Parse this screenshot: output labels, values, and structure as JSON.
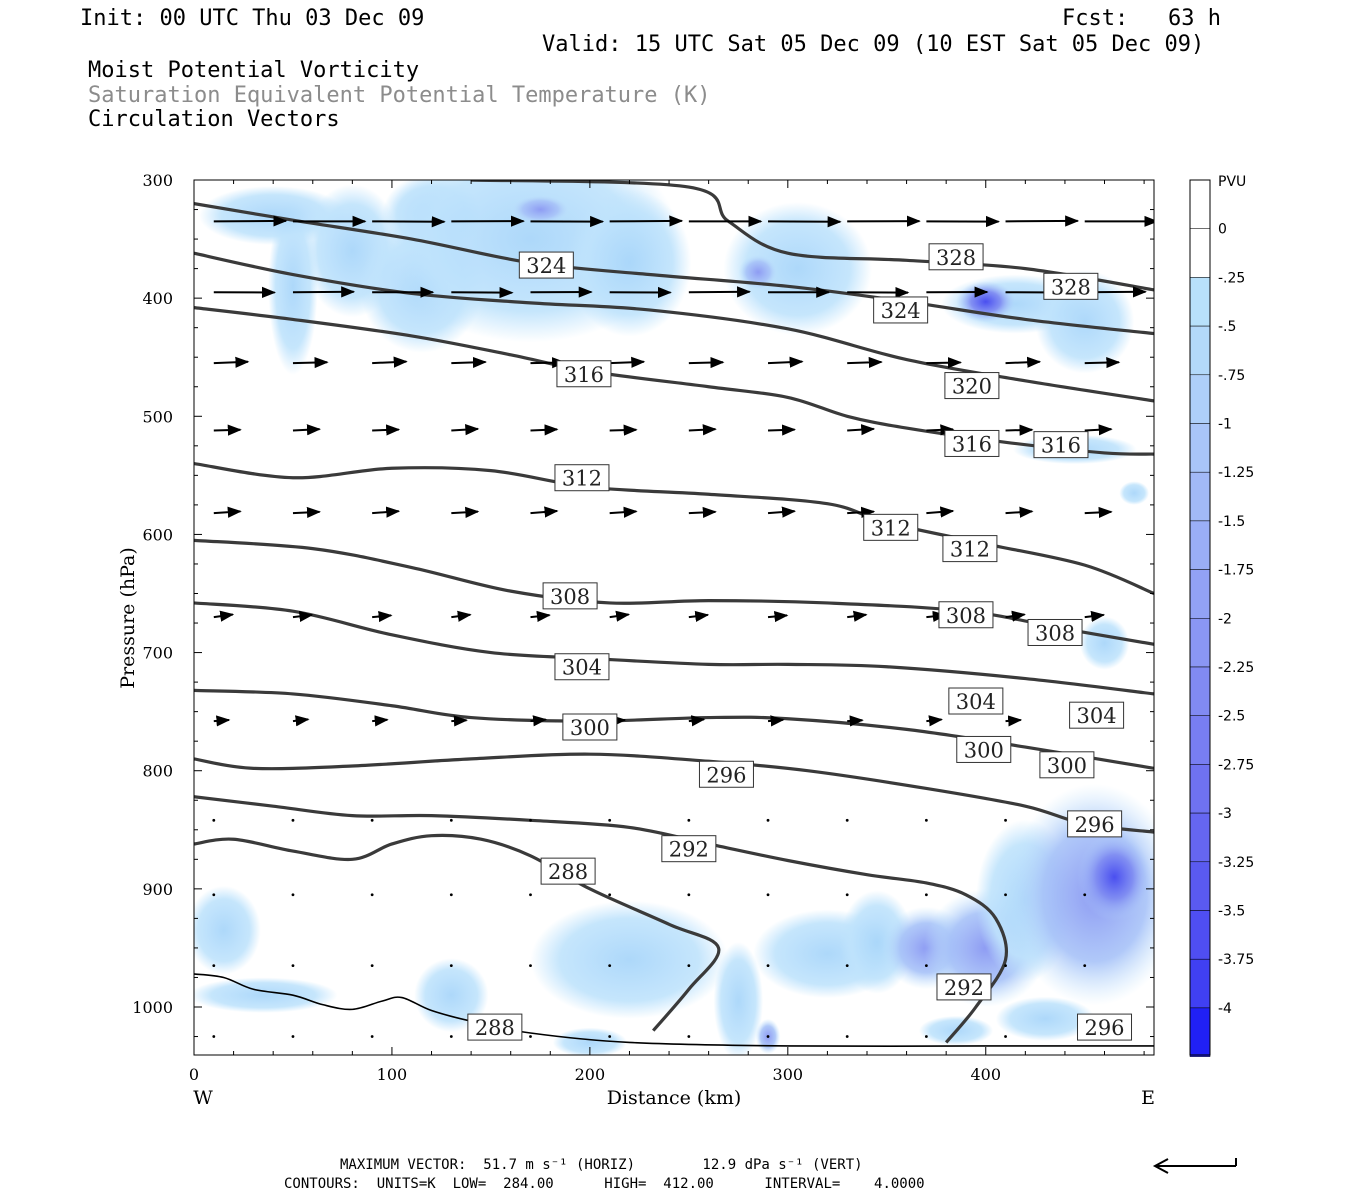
{
  "header": {
    "init": "Init: 00 UTC Thu 03 Dec 09",
    "fcst": "Fcst:   63 h",
    "valid": "Valid: 15 UTC Sat 05 Dec 09 (10 EST Sat 05 Dec 09)",
    "field1": "Moist Potential Vorticity",
    "field2": "Saturation Equivalent Potential Temperature (K)",
    "field3": "Circulation Vectors"
  },
  "colors": {
    "field2_text": "#8c8c8c",
    "contour": "#3a3a3a",
    "pv_light": "#b8e1fb",
    "pv_mid": "#9fb6f5",
    "pv_strong": "#5a5ff0"
  },
  "footer": {
    "max_vector": "MAXIMUM VECTOR:  51.7 m s⁻¹ (HORIZ)        12.9 dPa s⁻¹ (VERT)",
    "contours": "CONTOURS:  UNITS=K  LOW=  284.00      HIGH=  412.00      INTERVAL=    4.0000",
    "ref_arrow_icon": "reference-vector-arrow"
  },
  "chart_data": {
    "type": "contour",
    "title": "Moist Potential Vorticity / Saturation Equivalent Potential Temperature (K) / Circulation Vectors",
    "xlabel": "Distance (km)",
    "ylabel": "Pressure (hPa)",
    "xlim": [
      0,
      485
    ],
    "ylim": [
      1040,
      300
    ],
    "x_ticks": [
      "0",
      "100",
      "200",
      "300",
      "400"
    ],
    "x_tick_values": [
      0,
      100,
      200,
      300,
      400
    ],
    "y_ticks": [
      "300",
      "400",
      "500",
      "600",
      "700",
      "800",
      "900",
      "1000"
    ],
    "y_tick_values": [
      300,
      400,
      500,
      600,
      700,
      800,
      900,
      1000
    ],
    "x_end_labels": {
      "left": "W",
      "right": "E"
    },
    "colorbar": {
      "label": "PVU",
      "ticks": [
        "0",
        "-.25",
        "-.5",
        "-.75",
        "-1",
        "-1.25",
        "-1.5",
        "-1.75",
        "-2",
        "-2.25",
        "-2.5",
        "-2.75",
        "-3",
        "-3.25",
        "-3.5",
        "-3.75",
        "-4"
      ]
    },
    "theta_e_contours": [
      {
        "level": 288,
        "points": [
          [
            0,
            862
          ],
          [
            20,
            858
          ],
          [
            50,
            868
          ],
          [
            80,
            875
          ],
          [
            100,
            862
          ],
          [
            120,
            855
          ],
          [
            145,
            858
          ],
          [
            170,
            872
          ],
          [
            200,
            900
          ],
          [
            240,
            930
          ],
          [
            265,
            950
          ],
          [
            250,
            985
          ],
          [
            232,
            1020
          ]
        ]
      },
      {
        "level": 292,
        "points": [
          [
            0,
            822
          ],
          [
            40,
            830
          ],
          [
            80,
            838
          ],
          [
            120,
            838
          ],
          [
            170,
            842
          ],
          [
            220,
            848
          ],
          [
            260,
            862
          ],
          [
            300,
            876
          ],
          [
            340,
            888
          ],
          [
            370,
            895
          ],
          [
            390,
            905
          ],
          [
            405,
            925
          ],
          [
            410,
            960
          ],
          [
            395,
            1000
          ],
          [
            380,
            1030
          ]
        ]
      },
      {
        "level": 296,
        "points": [
          [
            0,
            790
          ],
          [
            30,
            798
          ],
          [
            80,
            796
          ],
          [
            140,
            790
          ],
          [
            200,
            786
          ],
          [
            260,
            792
          ],
          [
            310,
            800
          ],
          [
            370,
            815
          ],
          [
            420,
            830
          ],
          [
            450,
            845
          ],
          [
            485,
            852
          ]
        ]
      },
      {
        "level": 300,
        "points": [
          [
            0,
            732
          ],
          [
            50,
            735
          ],
          [
            100,
            745
          ],
          [
            140,
            755
          ],
          [
            200,
            758
          ],
          [
            260,
            755
          ],
          [
            300,
            756
          ],
          [
            360,
            765
          ],
          [
            420,
            780
          ],
          [
            485,
            798
          ]
        ]
      },
      {
        "level": 304,
        "points": [
          [
            0,
            658
          ],
          [
            50,
            665
          ],
          [
            100,
            685
          ],
          [
            150,
            700
          ],
          [
            200,
            705
          ],
          [
            260,
            710
          ],
          [
            300,
            710
          ],
          [
            350,
            712
          ],
          [
            420,
            722
          ],
          [
            485,
            735
          ]
        ]
      },
      {
        "level": 308,
        "points": [
          [
            0,
            605
          ],
          [
            60,
            612
          ],
          [
            110,
            628
          ],
          [
            160,
            648
          ],
          [
            210,
            658
          ],
          [
            260,
            656
          ],
          [
            320,
            658
          ],
          [
            390,
            665
          ],
          [
            440,
            680
          ],
          [
            485,
            693
          ]
        ]
      },
      {
        "level": 312,
        "points": [
          [
            0,
            540
          ],
          [
            50,
            552
          ],
          [
            100,
            544
          ],
          [
            150,
            546
          ],
          [
            200,
            560
          ],
          [
            260,
            566
          ],
          [
            320,
            574
          ],
          [
            350,
            590
          ],
          [
            400,
            608
          ],
          [
            450,
            626
          ],
          [
            485,
            650
          ]
        ]
      },
      {
        "level": 316,
        "points": [
          [
            0,
            408
          ],
          [
            50,
            418
          ],
          [
            110,
            432
          ],
          [
            160,
            448
          ],
          [
            200,
            462
          ],
          [
            260,
            475
          ],
          [
            300,
            484
          ],
          [
            330,
            500
          ],
          [
            360,
            510
          ],
          [
            410,
            522
          ],
          [
            460,
            531
          ],
          [
            485,
            532
          ]
        ]
      },
      {
        "level": 320,
        "points": [
          [
            0,
            362
          ],
          [
            50,
            380
          ],
          [
            110,
            396
          ],
          [
            170,
            404
          ],
          [
            230,
            410
          ],
          [
            300,
            426
          ],
          [
            360,
            452
          ],
          [
            420,
            470
          ],
          [
            485,
            487
          ]
        ]
      },
      {
        "level": 324,
        "points": [
          [
            0,
            320
          ],
          [
            50,
            334
          ],
          [
            110,
            350
          ],
          [
            170,
            370
          ],
          [
            230,
            380
          ],
          [
            300,
            390
          ],
          [
            360,
            403
          ],
          [
            420,
            418
          ],
          [
            485,
            430
          ]
        ]
      },
      {
        "level": 328,
        "points": [
          [
            140,
            300
          ],
          [
            250,
            306
          ],
          [
            270,
            335
          ],
          [
            300,
            362
          ],
          [
            360,
            368
          ],
          [
            420,
            375
          ],
          [
            485,
            393
          ]
        ]
      }
    ],
    "contour_labels": [
      {
        "text": "324",
        "x": 178,
        "p": 372
      },
      {
        "text": "328",
        "x": 385,
        "p": 365
      },
      {
        "text": "328",
        "x": 443,
        "p": 390
      },
      {
        "text": "324",
        "x": 357,
        "p": 410
      },
      {
        "text": "316",
        "x": 197,
        "p": 464
      },
      {
        "text": "320",
        "x": 393,
        "p": 474
      },
      {
        "text": "316",
        "x": 393,
        "p": 523
      },
      {
        "text": "316",
        "x": 438,
        "p": 524
      },
      {
        "text": "312",
        "x": 196,
        "p": 552
      },
      {
        "text": "312",
        "x": 352,
        "p": 594
      },
      {
        "text": "312",
        "x": 392,
        "p": 612
      },
      {
        "text": "308",
        "x": 190,
        "p": 652
      },
      {
        "text": "308",
        "x": 390,
        "p": 668
      },
      {
        "text": "308",
        "x": 435,
        "p": 683
      },
      {
        "text": "304",
        "x": 196,
        "p": 712
      },
      {
        "text": "304",
        "x": 395,
        "p": 741
      },
      {
        "text": "304",
        "x": 456,
        "p": 753
      },
      {
        "text": "300",
        "x": 200,
        "p": 763
      },
      {
        "text": "300",
        "x": 399,
        "p": 782
      },
      {
        "text": "300",
        "x": 441,
        "p": 795
      },
      {
        "text": "296",
        "x": 269,
        "p": 803
      },
      {
        "text": "296",
        "x": 455,
        "p": 845
      },
      {
        "text": "292",
        "x": 250,
        "p": 866
      },
      {
        "text": "288",
        "x": 189,
        "p": 885
      },
      {
        "text": "292",
        "x": 389,
        "p": 983
      },
      {
        "text": "288",
        "x": 152,
        "p": 1017
      },
      {
        "text": "296",
        "x": 460,
        "p": 1017
      }
    ],
    "pv_blobs": [
      {
        "x": 50,
        "p": 390,
        "rx": 10,
        "rp": 60,
        "level": "light"
      },
      {
        "x": 40,
        "p": 330,
        "rx": 30,
        "rp": 20,
        "level": "light"
      },
      {
        "x": 80,
        "p": 360,
        "rx": 20,
        "rp": 45,
        "level": "light"
      },
      {
        "x": 115,
        "p": 390,
        "rx": 25,
        "rp": 45,
        "level": "light"
      },
      {
        "x": 120,
        "p": 330,
        "rx": 20,
        "rp": 28,
        "level": "light"
      },
      {
        "x": 170,
        "p": 350,
        "rx": 60,
        "rp": 70,
        "level": "light"
      },
      {
        "x": 175,
        "p": 325,
        "rx": 12,
        "rp": 10,
        "level": "mid"
      },
      {
        "x": 220,
        "p": 370,
        "rx": 25,
        "rp": 50,
        "level": "light"
      },
      {
        "x": 305,
        "p": 375,
        "rx": 30,
        "rp": 45,
        "level": "light"
      },
      {
        "x": 285,
        "p": 378,
        "rx": 8,
        "rp": 12,
        "level": "mid"
      },
      {
        "x": 415,
        "p": 405,
        "rx": 30,
        "rp": 20,
        "level": "light"
      },
      {
        "x": 400,
        "p": 403,
        "rx": 12,
        "rp": 14,
        "level": "strong"
      },
      {
        "x": 450,
        "p": 420,
        "rx": 20,
        "rp": 35,
        "level": "light"
      },
      {
        "x": 445,
        "p": 528,
        "rx": 25,
        "rp": 10,
        "level": "light"
      },
      {
        "x": 475,
        "p": 565,
        "rx": 6,
        "rp": 8,
        "level": "light"
      },
      {
        "x": 460,
        "p": 692,
        "rx": 10,
        "rp": 18,
        "level": "light"
      },
      {
        "x": 15,
        "p": 935,
        "rx": 15,
        "rp": 30,
        "level": "light"
      },
      {
        "x": 35,
        "p": 990,
        "rx": 30,
        "rp": 12,
        "level": "light"
      },
      {
        "x": 130,
        "p": 990,
        "rx": 15,
        "rp": 25,
        "level": "light"
      },
      {
        "x": 220,
        "p": 960,
        "rx": 40,
        "rp": 40,
        "level": "light"
      },
      {
        "x": 200,
        "p": 1030,
        "rx": 15,
        "rp": 10,
        "level": "light"
      },
      {
        "x": 275,
        "p": 995,
        "rx": 10,
        "rp": 40,
        "level": "light"
      },
      {
        "x": 290,
        "p": 1025,
        "rx": 5,
        "rp": 12,
        "level": "mid"
      },
      {
        "x": 320,
        "p": 955,
        "rx": 30,
        "rp": 30,
        "level": "light"
      },
      {
        "x": 345,
        "p": 945,
        "rx": 15,
        "rp": 35,
        "level": "light"
      },
      {
        "x": 370,
        "p": 950,
        "rx": 18,
        "rp": 28,
        "level": "mid"
      },
      {
        "x": 400,
        "p": 950,
        "rx": 25,
        "rp": 40,
        "level": "mid"
      },
      {
        "x": 420,
        "p": 910,
        "rx": 20,
        "rp": 55,
        "level": "light"
      },
      {
        "x": 455,
        "p": 905,
        "rx": 35,
        "rp": 75,
        "level": "mid"
      },
      {
        "x": 465,
        "p": 890,
        "rx": 15,
        "rp": 30,
        "level": "strong"
      },
      {
        "x": 430,
        "p": 1010,
        "rx": 20,
        "rp": 15,
        "level": "light"
      },
      {
        "x": 385,
        "p": 1020,
        "rx": 15,
        "rp": 10,
        "level": "light"
      }
    ],
    "vector_rows": [
      {
        "p": 335,
        "u": 38,
        "w": 0
      },
      {
        "p": 395,
        "u": 32,
        "w": 0
      },
      {
        "p": 455,
        "u": 18,
        "w": -0.5
      },
      {
        "p": 512,
        "u": 14,
        "w": -0.5
      },
      {
        "p": 582,
        "u": 14,
        "w": -0.8
      },
      {
        "p": 670,
        "u": 10,
        "w": -1
      },
      {
        "p": 758,
        "u": 8,
        "w": -0.6
      },
      {
        "p": 842,
        "u": 2,
        "w": -0.5
      },
      {
        "p": 905,
        "u": 2,
        "w": -0.3
      },
      {
        "p": 965,
        "u": 2,
        "w": 0
      },
      {
        "p": 1025,
        "u": 1,
        "w": 0
      }
    ],
    "vector_columns_km": [
      10,
      50,
      90,
      130,
      170,
      210,
      250,
      290,
      330,
      370,
      410,
      450
    ]
  }
}
